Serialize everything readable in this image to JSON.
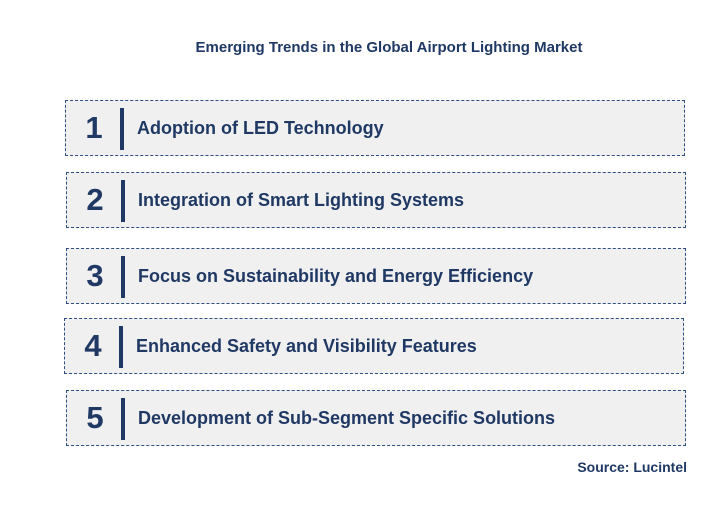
{
  "title": "Emerging Trends in the Global Airport Lighting Market",
  "trends": [
    {
      "number": "1",
      "label": "Adoption of LED Technology"
    },
    {
      "number": "2",
      "label": "Integration of Smart Lighting Systems"
    },
    {
      "number": "3",
      "label": "Focus on Sustainability and Energy Efficiency"
    },
    {
      "number": "4",
      "label": "Enhanced Safety and Visibility Features"
    },
    {
      "number": "5",
      "label": "Development of Sub-Segment Specific Solutions"
    }
  ],
  "source": "Source: Lucintel",
  "colors": {
    "text": "#1f3864",
    "box_fill": "#f0f0f0",
    "box_border": "#2f4f7f"
  }
}
